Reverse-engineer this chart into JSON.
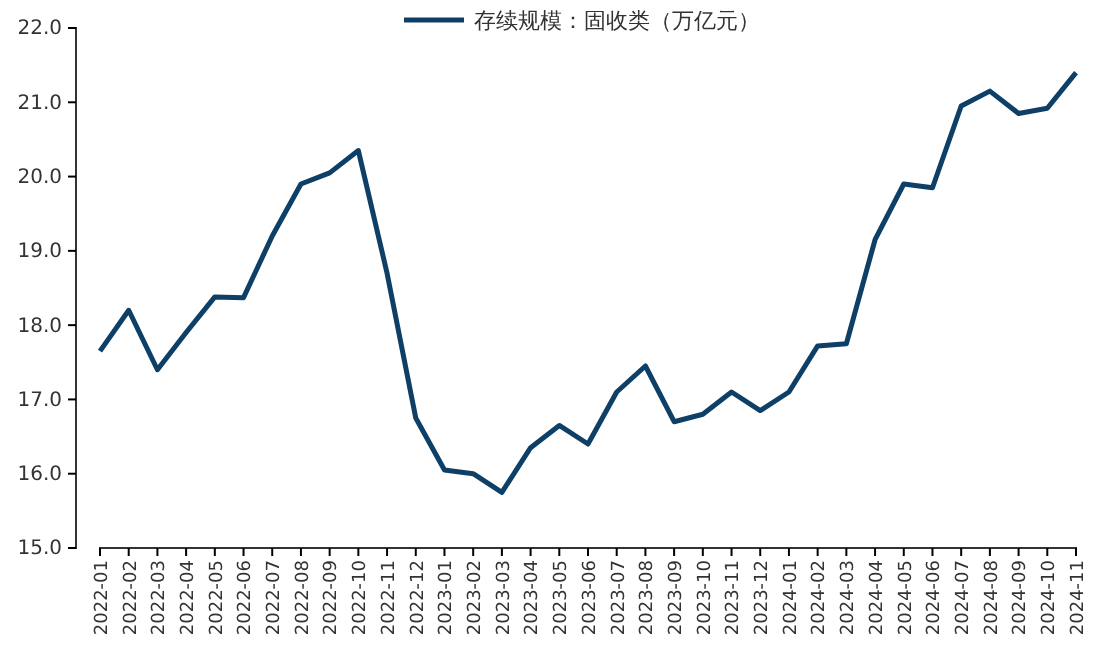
{
  "chart_data": {
    "type": "line",
    "categories": [
      "2022-01",
      "2022-02",
      "2022-03",
      "2022-04",
      "2022-05",
      "2022-06",
      "2022-07",
      "2022-08",
      "2022-09",
      "2022-10",
      "2022-11",
      "2022-12",
      "2023-01",
      "2023-02",
      "2023-03",
      "2023-04",
      "2023-05",
      "2023-06",
      "2023-07",
      "2023-08",
      "2023-09",
      "2023-10",
      "2023-11",
      "2023-12",
      "2024-01",
      "2024-02",
      "2024-03",
      "2024-04",
      "2024-05",
      "2024-06",
      "2024-07",
      "2024-08",
      "2024-09",
      "2024-10",
      "2024-11"
    ],
    "series": [
      {
        "name": "存续规模：固收类（万亿元）",
        "color": "#0e3f66",
        "values": [
          17.65,
          18.2,
          17.4,
          17.9,
          18.38,
          18.37,
          19.2,
          19.9,
          20.05,
          20.35,
          18.7,
          16.75,
          16.05,
          16.0,
          15.75,
          16.35,
          16.65,
          16.4,
          17.1,
          17.45,
          16.7,
          16.8,
          17.1,
          16.85,
          17.1,
          17.72,
          17.75,
          19.15,
          19.9,
          19.85,
          20.95,
          21.15,
          20.85,
          20.92,
          21.4
        ]
      }
    ],
    "ylim": [
      15,
      22
    ],
    "yticks": [
      {
        "value": 15,
        "label": "15.0"
      },
      {
        "value": 16,
        "label": "16.0"
      },
      {
        "value": 17,
        "label": "17.0"
      },
      {
        "value": 18,
        "label": "18.0"
      },
      {
        "value": 19,
        "label": "19.0"
      },
      {
        "value": 20,
        "label": "20.0"
      },
      {
        "value": 21,
        "label": "21.0"
      },
      {
        "value": 22,
        "label": "22.0"
      }
    ],
    "legend": "top",
    "grid": false,
    "marker": "none",
    "line_style": "solid"
  }
}
